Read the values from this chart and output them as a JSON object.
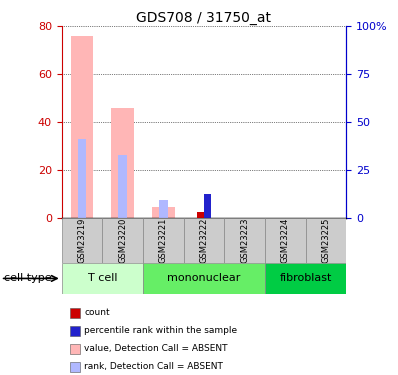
{
  "title": "GDS708 / 31750_at",
  "samples": [
    "GSM23219",
    "GSM23220",
    "GSM23221",
    "GSM23222",
    "GSM23223",
    "GSM23224",
    "GSM23225"
  ],
  "value_absent": [
    76.0,
    46.0,
    4.5,
    0.0,
    0.0,
    0.0,
    0.0
  ],
  "rank_absent": [
    33.0,
    26.0,
    7.5,
    0.0,
    0.0,
    0.0,
    0.0
  ],
  "value_present": [
    0.0,
    0.0,
    0.0,
    2.5,
    0.0,
    0.0,
    0.0
  ],
  "rank_present": [
    0.0,
    0.0,
    0.0,
    10.0,
    0.0,
    0.0,
    0.0
  ],
  "count_present": [
    0.0,
    0.0,
    0.0,
    2.5,
    0.0,
    0.0,
    0.0
  ],
  "ylim": [
    0,
    80
  ],
  "yticks_left": [
    0,
    20,
    40,
    60,
    80
  ],
  "yticks_right": [
    0,
    25,
    50,
    75,
    100
  ],
  "color_value_absent": "#ffb6b6",
  "color_rank_absent": "#b0b8ff",
  "color_value_present": "#ff6666",
  "color_rank_present": "#2222cc",
  "color_count": "#cc0000",
  "color_left_axis": "#cc0000",
  "color_right_axis": "#0000cc",
  "cell_groups": [
    {
      "label": "T cell",
      "start": 0,
      "end": 1,
      "color": "#ccffcc"
    },
    {
      "label": "mononuclear",
      "start": 2,
      "end": 4,
      "color": "#66ee66"
    },
    {
      "label": "fibroblast",
      "start": 5,
      "end": 6,
      "color": "#00cc44"
    }
  ],
  "legend_items": [
    {
      "color": "#cc0000",
      "label": "count"
    },
    {
      "color": "#2222cc",
      "label": "percentile rank within the sample"
    },
    {
      "color": "#ffb6b6",
      "label": "value, Detection Call = ABSENT"
    },
    {
      "color": "#b0b8ff",
      "label": "rank, Detection Call = ABSENT"
    }
  ]
}
